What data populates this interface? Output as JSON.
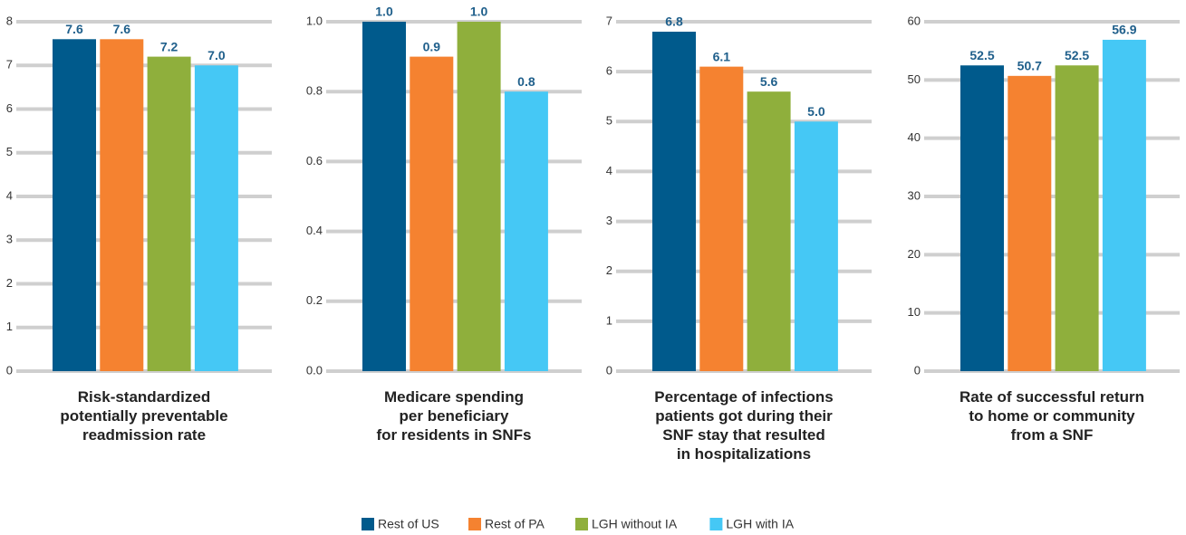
{
  "chart_data": [
    {
      "type": "bar",
      "title": "Risk-standardized\npotentially preventable\nreadmission rate",
      "ylim": [
        0,
        8
      ],
      "yticks": [
        0,
        1,
        2,
        3,
        4,
        5,
        6,
        7,
        8
      ],
      "grid": true,
      "series": [
        {
          "name": "Rest of US",
          "color": "#005a8c",
          "values": [
            7.6
          ]
        },
        {
          "name": "Rest of PA",
          "color": "#f58230",
          "values": [
            7.6
          ]
        },
        {
          "name": "LGH without IA",
          "color": "#8faf3c",
          "values": [
            7.2
          ]
        },
        {
          "name": "LGH with IA",
          "color": "#45c8f5",
          "values": [
            7.0
          ],
          "value_labels": [
            "7.0"
          ]
        }
      ]
    },
    {
      "type": "bar",
      "title": "Medicare spending\nper beneficiary\nfor residents in SNFs",
      "ylim": [
        0,
        1
      ],
      "yticks": [
        {
          "value": 0,
          "label": "0.0"
        },
        0.2,
        0.4,
        0.6,
        0.8,
        {
          "value": 1,
          "label": "1.0"
        }
      ],
      "grid": true,
      "series": [
        {
          "name": "Rest of US",
          "color": "#005a8c",
          "values": [
            1.0
          ],
          "value_labels": [
            "1.0"
          ]
        },
        {
          "name": "Rest of PA",
          "color": "#f58230",
          "values": [
            0.9
          ]
        },
        {
          "name": "LGH without IA",
          "color": "#8faf3c",
          "values": [
            1.0
          ],
          "value_labels": [
            "1.0"
          ]
        },
        {
          "name": "LGH with IA",
          "color": "#45c8f5",
          "values": [
            0.8
          ]
        }
      ]
    },
    {
      "type": "bar",
      "title": "Percentage of infections\npatients got during their\nSNF stay that resulted\nin hospitalizations",
      "ylim": [
        0,
        7
      ],
      "yticks": [
        0,
        1,
        2,
        3,
        4,
        5,
        6,
        7
      ],
      "grid": true,
      "series": [
        {
          "name": "Rest of US",
          "color": "#005a8c",
          "values": [
            6.8
          ]
        },
        {
          "name": "Rest of PA",
          "color": "#f58230",
          "values": [
            6.1
          ]
        },
        {
          "name": "LGH without IA",
          "color": "#8faf3c",
          "values": [
            5.6
          ]
        },
        {
          "name": "LGH with IA",
          "color": "#45c8f5",
          "values": [
            5.0
          ],
          "value_labels": [
            "5.0"
          ]
        }
      ]
    },
    {
      "type": "bar",
      "title": "Rate of successful return\nto home or community\nfrom a SNF",
      "ylim": [
        0,
        60
      ],
      "yticks": [
        0,
        10,
        20,
        30,
        40,
        50,
        60
      ],
      "grid": true,
      "series": [
        {
          "name": "Rest of US",
          "color": "#005a8c",
          "values": [
            52.5
          ]
        },
        {
          "name": "Rest of PA",
          "color": "#f58230",
          "values": [
            50.7
          ]
        },
        {
          "name": "LGH without IA",
          "color": "#8faf3c",
          "values": [
            52.5
          ]
        },
        {
          "name": "LGH with IA",
          "color": "#45c8f5",
          "values": [
            56.9
          ]
        }
      ]
    }
  ]
}
